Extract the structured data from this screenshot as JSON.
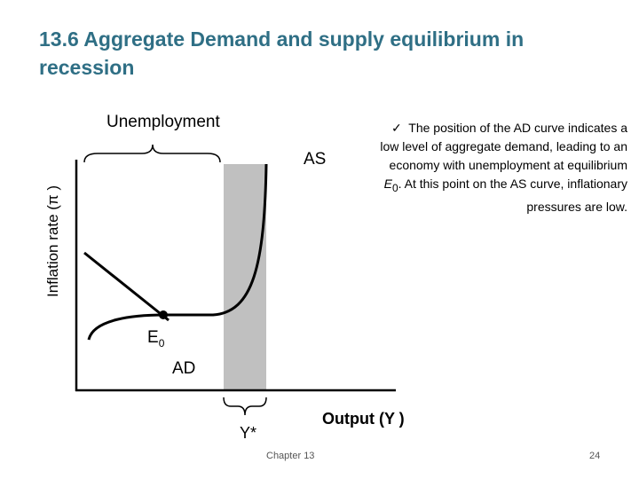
{
  "header": {
    "title": "13.6 Aggregate Demand and supply equilibrium in recession"
  },
  "diagram": {
    "unemployment_label": "Unemployment",
    "y_axis_label": "Inflation rate (π )",
    "x_axis_label": "Output (Y )",
    "as_label": "AS",
    "ad_label": "AD",
    "equilibrium_label": "E",
    "equilibrium_subscript": "0",
    "potential_output_label": "Y*"
  },
  "bullet": {
    "mark": "✓",
    "before": "The position of the AD curve indicates a low level of aggregate demand, leading to an economy with unemployment at equilibrium ",
    "eq": "E",
    "eq_sub": "0",
    "after": ". At this point on the AS curve, inflationary pressures are low."
  },
  "footer": {
    "chapter": "Chapter 13",
    "page": "24"
  }
}
